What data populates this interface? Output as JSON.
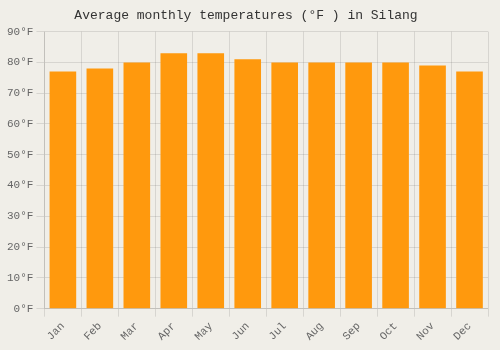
{
  "chart_data": {
    "type": "bar",
    "title": "Average monthly temperatures (°F ) in Silang",
    "categories": [
      "Jan",
      "Feb",
      "Mar",
      "Apr",
      "May",
      "Jun",
      "Jul",
      "Aug",
      "Sep",
      "Oct",
      "Nov",
      "Dec"
    ],
    "values": [
      77,
      78,
      80,
      83,
      83,
      81,
      80,
      80,
      80,
      80,
      79,
      77
    ],
    "color": "#ff990d",
    "ylim": [
      0,
      90
    ],
    "yticks": [
      {
        "value": 0,
        "label": "0°F"
      },
      {
        "value": 10,
        "label": "10°F"
      },
      {
        "value": 20,
        "label": "20°F"
      },
      {
        "value": 30,
        "label": "30°F"
      },
      {
        "value": 40,
        "label": "40°F"
      },
      {
        "value": 50,
        "label": "50°F"
      },
      {
        "value": 60,
        "label": "60°F"
      },
      {
        "value": 70,
        "label": "70°F"
      },
      {
        "value": 80,
        "label": "80°F"
      },
      {
        "value": 90,
        "label": "90°F"
      }
    ],
    "grid": true
  }
}
